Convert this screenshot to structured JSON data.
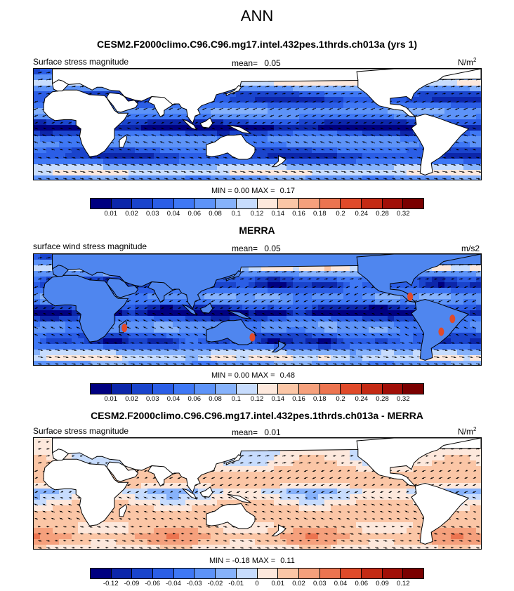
{
  "figure": {
    "title": "ANN"
  },
  "panels": [
    {
      "title": "CESM2.F2000climo.C96.C96.mg17.intel.432pes.1thrds.ch013a (yrs 1)",
      "variable": "Surface stress magnitude",
      "mean_label": "mean=",
      "mean_value": "0.05",
      "units": "N/m",
      "units_sup": "2",
      "min_label": "MIN =",
      "min_value": "0.00",
      "max_label": "MAX =",
      "max_value": "0.17",
      "field_kind": "abs",
      "colorbar_labels": [
        "0.01",
        "0.02",
        "0.03",
        "0.04",
        "0.06",
        "0.08",
        "0.1",
        "0.12",
        "0.14",
        "0.16",
        "0.18",
        "0.2",
        "0.24",
        "0.28",
        "0.32"
      ]
    },
    {
      "title": "MERRA",
      "variable": "surface wind stress magnitude",
      "mean_label": "mean=",
      "mean_value": "0.05",
      "units": "m/s2",
      "units_sup": "",
      "min_label": "MIN =",
      "min_value": "0.00",
      "max_label": "MAX =",
      "max_value": "0.48",
      "field_kind": "abs",
      "colorbar_labels": [
        "0.01",
        "0.02",
        "0.03",
        "0.04",
        "0.06",
        "0.08",
        "0.1",
        "0.12",
        "0.14",
        "0.16",
        "0.18",
        "0.2",
        "0.24",
        "0.28",
        "0.32"
      ]
    },
    {
      "title": "CESM2.F2000climo.C96.C96.mg17.intel.432pes.1thrds.ch013a - MERRA",
      "variable": "Surface stress magnitude",
      "mean_label": "mean=",
      "mean_value": "0.01",
      "units": "N/m",
      "units_sup": "2",
      "min_label": "MIN =",
      "min_value": "-0.18",
      "max_label": "MAX =",
      "max_value": "0.11",
      "field_kind": "diff",
      "colorbar_labels": [
        "-0.12",
        "-0.09",
        "-0.06",
        "-0.04",
        "-0.03",
        "-0.02",
        "-0.01",
        "0",
        "0.01",
        "0.02",
        "0.03",
        "0.04",
        "0.06",
        "0.09",
        "0.12"
      ]
    }
  ],
  "colorbar_colors": [
    "#000080",
    "#0c26aa",
    "#1a44cc",
    "#2b5ee6",
    "#3f78f5",
    "#5d93f8",
    "#86b2fb",
    "#c7dcfd",
    "#fde8dc",
    "#fbc6a6",
    "#f5a07c",
    "#ec7450",
    "#e04a2a",
    "#c42a14",
    "#a10f08",
    "#7a0000"
  ],
  "chart_data": [
    {
      "type": "heatmap",
      "title": "CESM2.F2000climo.C96.C96.mg17.intel.432pes.1thrds.ch013a (yrs 1)",
      "variable": "Surface stress magnitude",
      "units": "N/m2",
      "mean": 0.05,
      "min": 0.0,
      "max": 0.17,
      "levels": [
        0.01,
        0.02,
        0.03,
        0.04,
        0.06,
        0.08,
        0.1,
        0.12,
        0.14,
        0.16,
        0.18,
        0.2,
        0.24,
        0.28,
        0.32
      ],
      "overlay": "wind stress vectors"
    },
    {
      "type": "heatmap",
      "title": "MERRA",
      "variable": "surface wind stress magnitude",
      "units": "m/s2",
      "mean": 0.05,
      "min": 0.0,
      "max": 0.48,
      "levels": [
        0.01,
        0.02,
        0.03,
        0.04,
        0.06,
        0.08,
        0.1,
        0.12,
        0.14,
        0.16,
        0.18,
        0.2,
        0.24,
        0.28,
        0.32
      ],
      "overlay": "wind stress vectors"
    },
    {
      "type": "heatmap",
      "title": "CESM2.F2000climo.C96.C96.mg17.intel.432pes.1thrds.ch013a - MERRA",
      "variable": "Surface stress magnitude",
      "units": "N/m2",
      "mean": 0.01,
      "min": -0.18,
      "max": 0.11,
      "levels": [
        -0.12,
        -0.09,
        -0.06,
        -0.04,
        -0.03,
        -0.02,
        -0.01,
        0,
        0.01,
        0.02,
        0.03,
        0.04,
        0.06,
        0.09,
        0.12
      ],
      "overlay": "wind stress difference vectors"
    }
  ]
}
